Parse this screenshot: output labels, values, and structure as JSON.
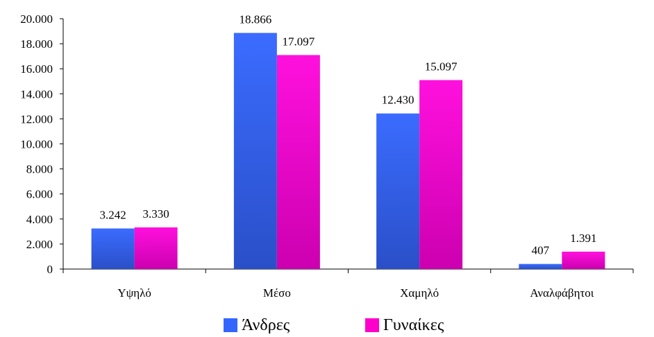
{
  "chart_data": {
    "type": "bar",
    "categories": [
      "Υψηλό",
      "Μέσο",
      "Χαμηλό",
      "Αναλφάβητοι"
    ],
    "series": [
      {
        "name": "Άνδρες",
        "values": [
          3242,
          18866,
          12430,
          407
        ],
        "labels": [
          "3.242",
          "18.866",
          "12.430",
          "407"
        ],
        "color": "#3366ff"
      },
      {
        "name": "Γυναίκες",
        "values": [
          3330,
          17097,
          15097,
          1391
        ],
        "labels": [
          "3.330",
          "17.097",
          "15.097",
          "1.391"
        ],
        "color": "#ff00cc"
      }
    ],
    "ylim": [
      0,
      20000
    ],
    "yticks": [
      0,
      2000,
      4000,
      6000,
      8000,
      10000,
      12000,
      14000,
      16000,
      18000,
      20000
    ],
    "ytick_labels": [
      "0",
      "2.000",
      "4.000",
      "6.000",
      "8.000",
      "10.000",
      "12.000",
      "14.000",
      "16.000",
      "18.000",
      "20.000"
    ],
    "grid": false,
    "legend_position": "bottom"
  }
}
